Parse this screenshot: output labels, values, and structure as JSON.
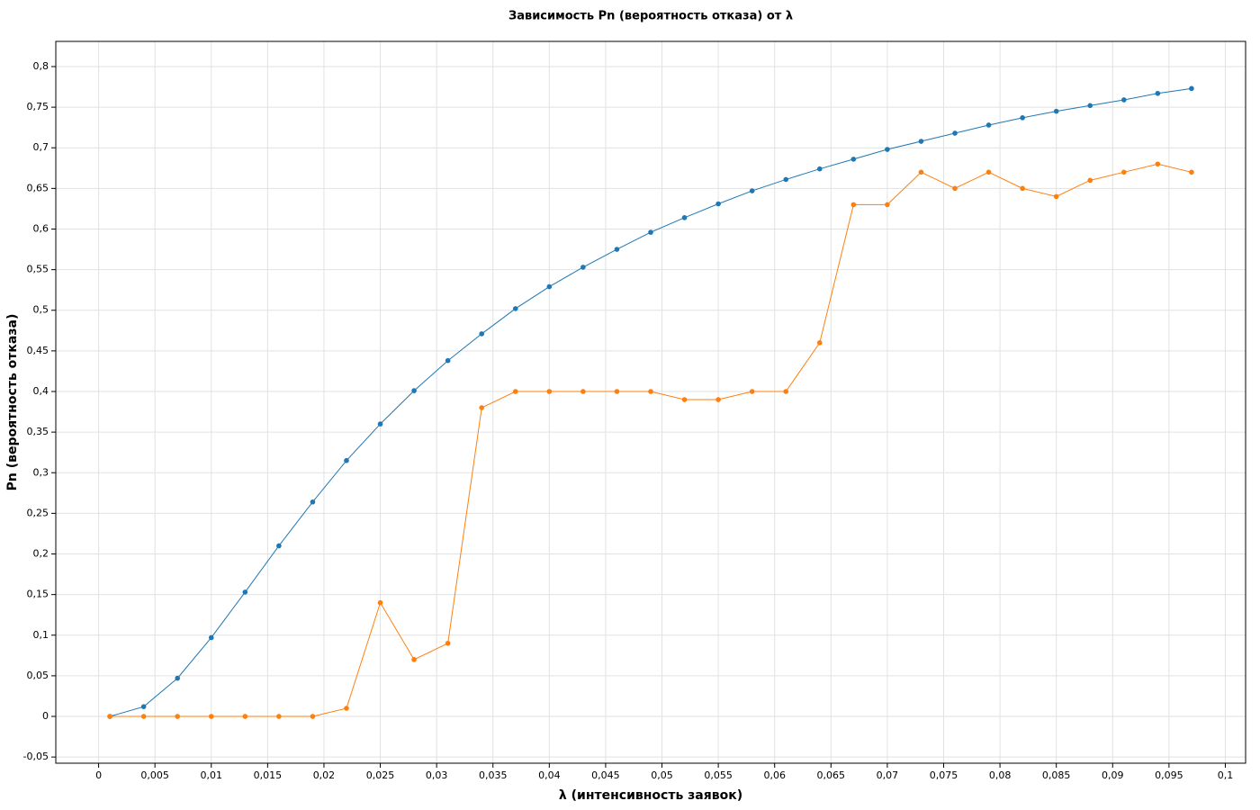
{
  "chart_data": {
    "type": "line",
    "title": "Зависимость Pn (вероятность отказа) от λ",
    "xlabel": "λ (интенсивность заявок)",
    "ylabel": "Pn (вероятность отказа)",
    "x": [
      0.001,
      0.004,
      0.007,
      0.01,
      0.013,
      0.016,
      0.019,
      0.022,
      0.025,
      0.028,
      0.031,
      0.034,
      0.037,
      0.04,
      0.043,
      0.046,
      0.049,
      0.052,
      0.055,
      0.058,
      0.061,
      0.064,
      0.067,
      0.07,
      0.073,
      0.076,
      0.079,
      0.082,
      0.085,
      0.088,
      0.091,
      0.094,
      0.097
    ],
    "series": [
      {
        "color": "#1f77b4",
        "values": [
          0,
          0.012,
          0.047,
          0.097,
          0.153,
          0.21,
          0.264,
          0.315,
          0.36,
          0.401,
          0.438,
          0.471,
          0.502,
          0.529,
          0.553,
          0.575,
          0.596,
          0.614,
          0.631,
          0.647,
          0.661,
          0.674,
          0.686,
          0.698,
          0.708,
          0.718,
          0.728,
          0.737,
          0.745,
          0.752,
          0.759,
          0.767,
          0.773
        ]
      },
      {
        "color": "#ff7f0e",
        "values": [
          0,
          0,
          0,
          0,
          0,
          0,
          0,
          0.01,
          0.14,
          0.07,
          0.09,
          0.38,
          0.4,
          0.4,
          0.4,
          0.4,
          0.4,
          0.39,
          0.39,
          0.4,
          0.4,
          0.46,
          0.63,
          0.63,
          0.67,
          0.65,
          0.67,
          0.65,
          0.64,
          0.66,
          0.67,
          0.68,
          0.67
        ]
      }
    ],
    "xlim": [
      -0.0038,
      0.1018
    ],
    "ylim": [
      -0.0576,
      0.831
    ],
    "xticks": [
      0,
      {
        "value": 0.005,
        "label": "0,005"
      },
      {
        "value": 0.01,
        "label": "0,01"
      },
      {
        "value": 0.015,
        "label": "0,015"
      },
      {
        "value": 0.02,
        "label": "0,02"
      },
      {
        "value": 0.025,
        "label": "0,025"
      },
      {
        "value": 0.03,
        "label": "0,03"
      },
      {
        "value": 0.035,
        "label": "0,035"
      },
      {
        "value": 0.04,
        "label": "0,04"
      },
      {
        "value": 0.045,
        "label": "0,045"
      },
      {
        "value": 0.05,
        "label": "0,05"
      },
      {
        "value": 0.055,
        "label": "0,055"
      },
      {
        "value": 0.06,
        "label": "0,06"
      },
      {
        "value": 0.065,
        "label": "0,065"
      },
      {
        "value": 0.07,
        "label": "0,07"
      },
      {
        "value": 0.075,
        "label": "0,075"
      },
      {
        "value": 0.08,
        "label": "0,08"
      },
      {
        "value": 0.085,
        "label": "0,085"
      },
      {
        "value": 0.09,
        "label": "0,09"
      },
      {
        "value": 0.095,
        "label": "0,095"
      },
      {
        "value": 0.1,
        "label": "0,1"
      }
    ],
    "yticks": [
      {
        "value": -0.05,
        "label": "-0,05"
      },
      0,
      {
        "value": 0.05,
        "label": "0,05"
      },
      {
        "value": 0.1,
        "label": "0,1"
      },
      {
        "value": 0.15,
        "label": "0,15"
      },
      {
        "value": 0.2,
        "label": "0,2"
      },
      {
        "value": 0.25,
        "label": "0,25"
      },
      {
        "value": 0.3,
        "label": "0,3"
      },
      {
        "value": 0.35,
        "label": "0,35"
      },
      {
        "value": 0.4,
        "label": "0,4"
      },
      {
        "value": 0.45,
        "label": "0,45"
      },
      {
        "value": 0.5,
        "label": "0,5"
      },
      {
        "value": 0.55,
        "label": "0,55"
      },
      {
        "value": 0.6,
        "label": "0,6"
      },
      {
        "value": 0.65,
        "label": "0,65"
      },
      {
        "value": 0.7,
        "label": "0,7"
      },
      {
        "value": 0.75,
        "label": "0,75"
      },
      {
        "value": 0.8,
        "label": "0,8"
      }
    ],
    "grid": true
  }
}
